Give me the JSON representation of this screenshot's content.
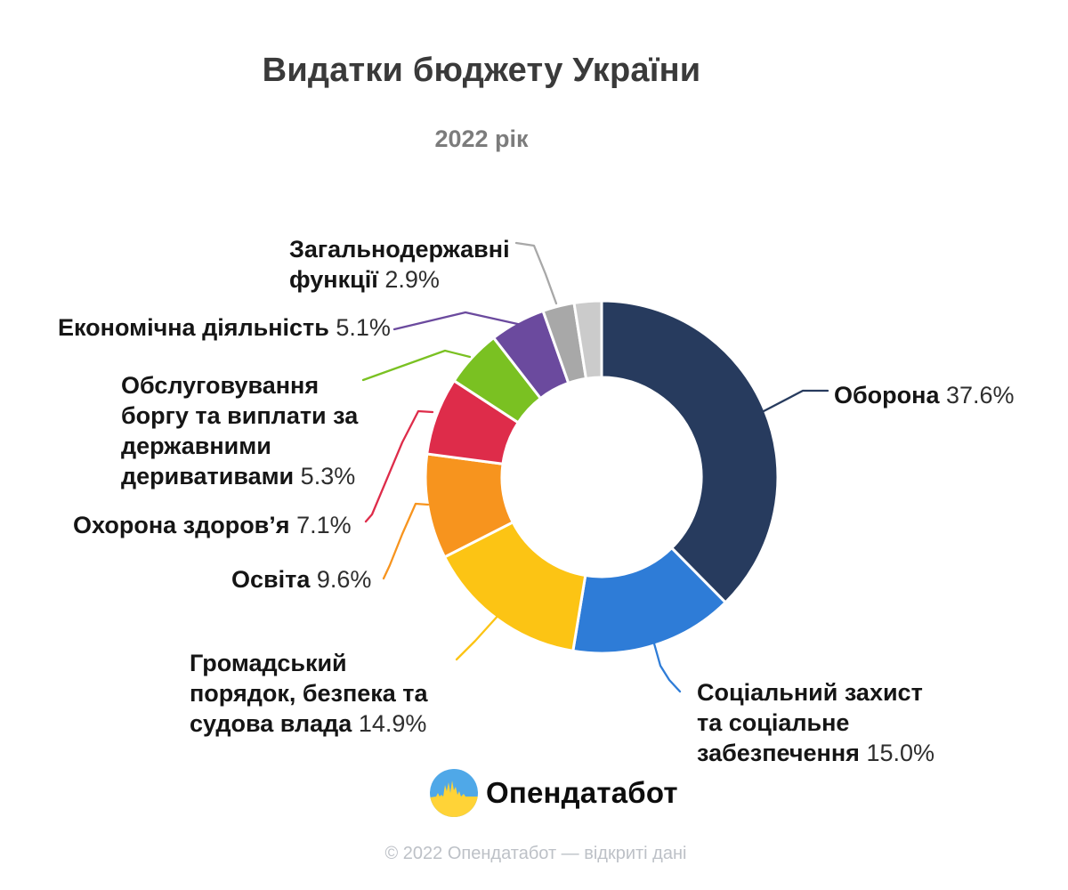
{
  "page": {
    "title": "Видатки бюджету України",
    "subtitle": "2022 рік",
    "brand_name": "Опендатабот",
    "footer": "© 2022 Опендатабот — відкриті дані"
  },
  "logo_colors": {
    "blue": "#4fa8e8",
    "yellow": "#ffd337"
  },
  "chart_data": {
    "type": "pie",
    "variant": "donut",
    "title": "Видатки бюджету України",
    "subtitle": "2022 рік",
    "unit": "%",
    "start_angle": "top",
    "direction": "clockwise",
    "hole_ratio": 0.57,
    "total": 100.0,
    "slices": [
      {
        "id": "defense",
        "name_lines": [
          "Оборона"
        ],
        "pct": "37.6%",
        "label": "Оборона",
        "value": 37.6,
        "color": "#273b5e"
      },
      {
        "id": "social-protection",
        "name_lines": [
          "Соціальний захист",
          "та соціальне",
          "забезпечення"
        ],
        "pct": "15.0%",
        "label": "Соціальний захист та соціальне забезпечення",
        "value": 15.0,
        "color": "#2e7cd7"
      },
      {
        "id": "public-order",
        "name_lines": [
          "Громадський",
          "порядок, безпека та",
          "судова влада"
        ],
        "pct": "14.9%",
        "label": "Громадський порядок, безпека та судова влада",
        "value": 14.9,
        "color": "#fcc414"
      },
      {
        "id": "education",
        "name_lines": [
          "Освіта"
        ],
        "pct": "9.6%",
        "label": "Освіта",
        "value": 9.6,
        "color": "#f7941e"
      },
      {
        "id": "healthcare",
        "name_lines": [
          "Охорона здоров’я"
        ],
        "pct": "7.1%",
        "label": "Охорона здоров’я",
        "value": 7.1,
        "color": "#de2c4a"
      },
      {
        "id": "debt-service",
        "name_lines": [
          "Обслуговування",
          "боргу та виплати за",
          "державними",
          "деривативами"
        ],
        "pct": "5.3%",
        "label": "Обслуговування боргу та виплати за державними деривативами",
        "value": 5.3,
        "color": "#7ac122"
      },
      {
        "id": "economic-activity",
        "name_lines": [
          "Економічна діяльність"
        ],
        "pct": "5.1%",
        "label": "Економічна діяльність",
        "value": 5.1,
        "color": "#6b4a9e"
      },
      {
        "id": "state-functions",
        "name_lines": [
          "Загальнодержавні",
          "функції"
        ],
        "pct": "2.9%",
        "label": "Загальнодержавні функції",
        "value": 2.9,
        "color": "#a8a8a8"
      },
      {
        "id": "other",
        "name_lines": [],
        "pct": "",
        "label": "",
        "value": 2.5,
        "color": "#cbcbcb"
      }
    ]
  }
}
